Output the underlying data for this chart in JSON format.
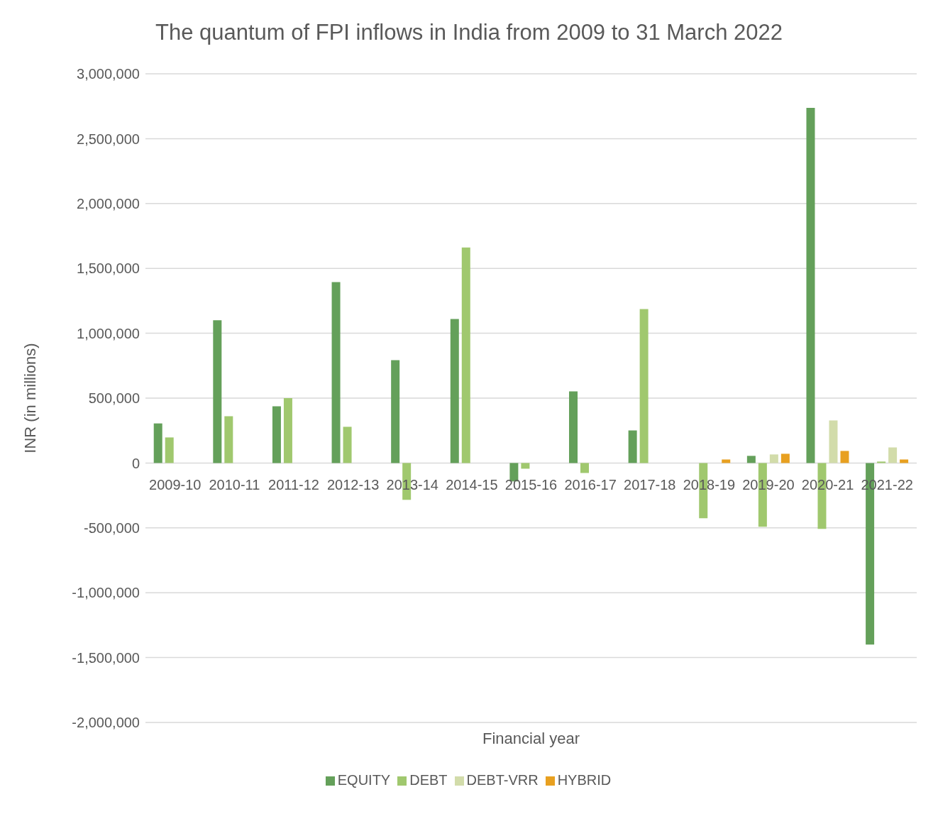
{
  "chart_data": {
    "type": "bar",
    "title": "The quantum of FPI inflows in India from 2009 to 31 March 2022",
    "xlabel": "Financial year",
    "ylabel": "INR (in millions)",
    "categories": [
      "2009-10",
      "2010-11",
      "2011-12",
      "2012-13",
      "2013-14",
      "2014-15",
      "2015-16",
      "2016-17",
      "2017-18",
      "2018-19",
      "2019-20",
      "2020-21",
      "2021-22"
    ],
    "series": [
      {
        "name": "EQUITY",
        "color": "#64a05a",
        "values": [
          305000,
          1100000,
          437000,
          1395000,
          792000,
          1110000,
          -142000,
          552000,
          251000,
          null,
          55000,
          2738000,
          -1400000
        ]
      },
      {
        "name": "DEBT",
        "color": "#a0c86e",
        "values": [
          197000,
          361000,
          500000,
          279000,
          -284000,
          1661000,
          -44000,
          -77000,
          1186000,
          -426000,
          -492000,
          -508000,
          11000
        ]
      },
      {
        "name": "DEBT-VRR",
        "color": "#d2dcaa",
        "values": [
          null,
          null,
          null,
          null,
          null,
          null,
          null,
          null,
          null,
          null,
          66000,
          328000,
          120000
        ]
      },
      {
        "name": "HYBRID",
        "color": "#e8a020",
        "values": [
          null,
          null,
          null,
          null,
          null,
          null,
          null,
          null,
          null,
          27000,
          71000,
          93000,
          27000
        ]
      }
    ],
    "ylim": [
      -2000000,
      3000000
    ],
    "yticks": [
      {
        "value": -2000000,
        "label": "-2,000,000"
      },
      {
        "value": -1500000,
        "label": "-1,500,000"
      },
      {
        "value": -1000000,
        "label": "-1,000,000"
      },
      {
        "value": -500000,
        "label": "-500,000"
      },
      0,
      {
        "value": 500000,
        "label": "500,000"
      },
      {
        "value": 1000000,
        "label": "1,000,000"
      },
      {
        "value": 1500000,
        "label": "1,500,000"
      },
      {
        "value": 2000000,
        "label": "2,000,000"
      },
      {
        "value": 2500000,
        "label": "2,500,000"
      },
      {
        "value": 3000000,
        "label": "3,000,000"
      }
    ],
    "grid": "y",
    "legend": "bottom"
  }
}
